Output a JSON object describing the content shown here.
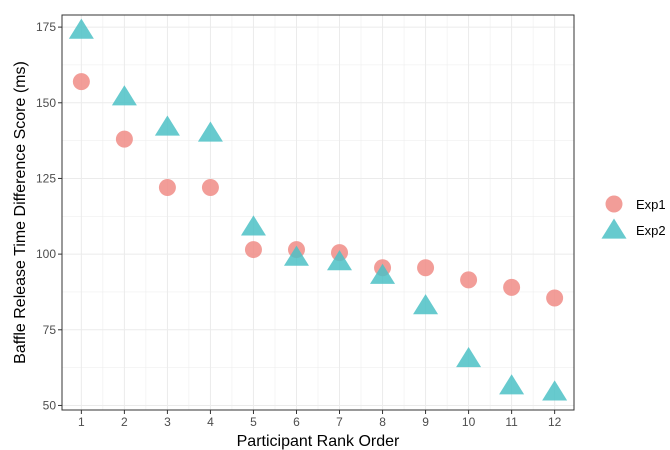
{
  "chart_data": {
    "type": "scatter",
    "title": "",
    "xlabel": "Participant Rank Order",
    "ylabel": "Baffle Release Time Difference Score (ms)",
    "x": [
      1,
      2,
      3,
      4,
      5,
      6,
      7,
      8,
      9,
      10,
      11,
      12
    ],
    "xlim": [
      0.55,
      12.45
    ],
    "ylim": [
      48.5,
      179
    ],
    "xticks": [
      "1",
      "2",
      "3",
      "4",
      "5",
      "6",
      "7",
      "8",
      "9",
      "10",
      "11",
      "12"
    ],
    "yticks": [
      "50",
      "75",
      "100",
      "125",
      "150",
      "175"
    ],
    "grid": true,
    "legend_position": "right",
    "series": [
      {
        "name": "Exp1",
        "marker": "circle",
        "color": "#F08C86",
        "values": [
          157,
          138,
          122,
          122,
          101.5,
          101.5,
          100.5,
          95.5,
          95.5,
          91.5,
          89,
          85.5
        ]
      },
      {
        "name": "Exp2",
        "marker": "triangle",
        "color": "#4CC1C6",
        "values": [
          174,
          152,
          142,
          140,
          109,
          99,
          97.5,
          93,
          83,
          65.5,
          56.5,
          54.5
        ]
      }
    ]
  }
}
